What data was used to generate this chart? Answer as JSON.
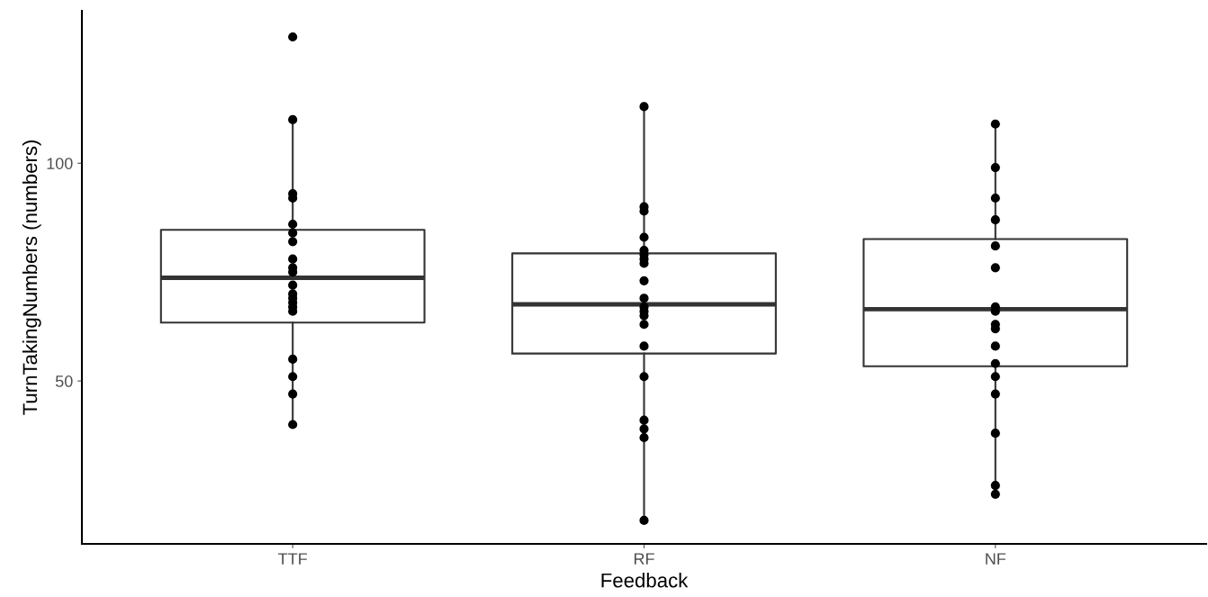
{
  "chart_data": {
    "type": "box",
    "xlabel": "Feedback",
    "ylabel": "TurnTakingNumbers (numbers)",
    "categories": [
      "TTF",
      "RF",
      "NF"
    ],
    "boxes": [
      {
        "low": 40,
        "q1": 63.4,
        "median": 73.7,
        "q3": 84.7,
        "high": 110
      },
      {
        "low": 18,
        "q1": 56.3,
        "median": 67.6,
        "q3": 79.3,
        "high": 113
      },
      {
        "low": 24,
        "q1": 53.4,
        "median": 66.5,
        "q3": 82.6,
        "high": 109
      }
    ],
    "color": "#333333",
    "series": [
      {
        "type": "scatter",
        "color": "#000000",
        "x": [
          "TTF",
          "TTF",
          "TTF",
          "TTF",
          "TTF",
          "TTF",
          "TTF",
          "TTF",
          "TTF",
          "TTF",
          "TTF",
          "TTF",
          "TTF",
          "TTF",
          "TTF",
          "TTF",
          "TTF",
          "TTF",
          "TTF",
          "TTF"
        ],
        "values": [
          129,
          110,
          93,
          92,
          86,
          84,
          82,
          78,
          76,
          75,
          72,
          70,
          69,
          68,
          67,
          66,
          55,
          51,
          47,
          40
        ]
      },
      {
        "type": "scatter",
        "color": "#000000",
        "x": [
          "RF",
          "RF",
          "RF",
          "RF",
          "RF",
          "RF",
          "RF",
          "RF",
          "RF",
          "RF",
          "RF",
          "RF",
          "RF",
          "RF",
          "RF",
          "RF",
          "RF",
          "RF",
          "RF",
          "RF"
        ],
        "values": [
          113,
          90,
          89,
          83,
          80,
          79,
          78,
          77,
          73,
          69,
          67,
          66,
          65,
          63,
          58,
          51,
          41,
          39,
          37,
          18
        ]
      },
      {
        "type": "scatter",
        "color": "#000000",
        "x": [
          "NF",
          "NF",
          "NF",
          "NF",
          "NF",
          "NF",
          "NF",
          "NF",
          "NF",
          "NF",
          "NF",
          "NF",
          "NF",
          "NF",
          "NF",
          "NF",
          "NF",
          "NF",
          "NF",
          "NF"
        ],
        "values": [
          109,
          99,
          92,
          87,
          81,
          76,
          67,
          null,
          null,
          null,
          66,
          63,
          62,
          58,
          54,
          51,
          47,
          38,
          26,
          24
        ]
      }
    ],
    "marker": "circle",
    "ylim": [
      12.6,
      135
    ],
    "yticks": [
      50,
      100
    ],
    "grid": false,
    "legend": false
  }
}
